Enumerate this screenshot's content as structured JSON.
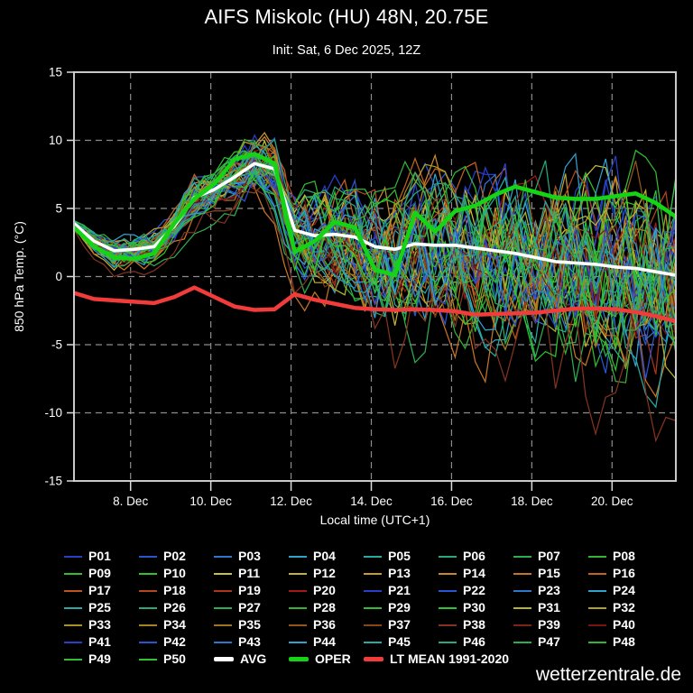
{
  "page": {
    "background": "#000000",
    "watermark": "wetterzentrale.de"
  },
  "chart_data": {
    "type": "line",
    "title": "AIFS Miskolc (HU) 48N, 20.75E",
    "subtitle": "Init: Sat, 6 Dec 2025, 12Z",
    "xlabel": "Local time (UTC+1)",
    "ylabel": "850 hPa Temp. (°C)",
    "ylim": [
      -15,
      15
    ],
    "yticks": [
      15,
      10,
      5,
      0,
      -5,
      -10,
      -15
    ],
    "grid": true,
    "grid_color": "#8c8c8c",
    "frame_color": "#c9c9c9",
    "x_days_total": 15,
    "time_step_days": 0.5,
    "xticks": [
      {
        "label": "8. Dec",
        "day": 1.41
      },
      {
        "label": "10. Dec",
        "day": 3.41
      },
      {
        "label": "12. Dec",
        "day": 5.41
      },
      {
        "label": "14. Dec",
        "day": 7.41
      },
      {
        "label": "16. Dec",
        "day": 9.41
      },
      {
        "label": "18. Dec",
        "day": 11.41
      },
      {
        "label": "20. Dec",
        "day": 13.41
      }
    ],
    "legend_position": "bottom",
    "series": [
      {
        "name": "LT MEAN 1991-2020",
        "color": "#f23c3c",
        "width": 4.5,
        "values": [
          -1.2,
          -1.65,
          -1.75,
          -1.85,
          -1.95,
          -1.5,
          -0.8,
          -1.5,
          -2.2,
          -2.45,
          -2.4,
          -1.3,
          -1.7,
          -2.0,
          -2.3,
          -2.4,
          -2.45,
          -2.4,
          -2.45,
          -2.55,
          -2.8,
          -2.75,
          -2.7,
          -2.65,
          -2.5,
          -2.35,
          -2.35,
          -2.4,
          -2.6,
          -2.9,
          -3.3
        ]
      },
      {
        "name": "AVG",
        "color": "#ffffff",
        "width": 3.6,
        "values": [
          3.9,
          2.6,
          1.9,
          2.0,
          2.2,
          3.7,
          5.8,
          6.4,
          7.3,
          8.3,
          7.9,
          3.4,
          3.0,
          3.1,
          2.9,
          2.2,
          2.0,
          2.4,
          2.3,
          2.3,
          2.1,
          1.9,
          1.7,
          1.4,
          1.1,
          1.0,
          0.9,
          0.7,
          0.6,
          0.35,
          0.1
        ]
      },
      {
        "name": "OPER",
        "color": "#15d415",
        "width": 4.6,
        "values": [
          3.6,
          2.2,
          1.4,
          1.3,
          1.7,
          3.9,
          5.7,
          6.8,
          8.6,
          9.0,
          8.3,
          1.8,
          2.6,
          4.0,
          3.6,
          0.5,
          0.1,
          4.7,
          3.3,
          4.8,
          5.2,
          6.0,
          6.6,
          6.2,
          5.8,
          5.7,
          5.7,
          5.9,
          6.1,
          5.4,
          4.4
        ]
      }
    ],
    "ensemble": {
      "count": 50,
      "names": [
        "P01",
        "P02",
        "P03",
        "P04",
        "P05",
        "P06",
        "P07",
        "P08",
        "P09",
        "P10",
        "P11",
        "P12",
        "P13",
        "P14",
        "P15",
        "P16",
        "P17",
        "P18",
        "P19",
        "P20",
        "P21",
        "P22",
        "P23",
        "P24",
        "P25",
        "P26",
        "P27",
        "P28",
        "P29",
        "P30",
        "P31",
        "P32",
        "P33",
        "P34",
        "P35",
        "P36",
        "P37",
        "P38",
        "P39",
        "P40",
        "P41",
        "P42",
        "P43",
        "P44",
        "P45",
        "P46",
        "P47",
        "P48",
        "P49",
        "P50"
      ],
      "colors": [
        "#2840c8",
        "#2a55d2",
        "#2e78cc",
        "#30a0cc",
        "#28aaa2",
        "#2aa878",
        "#2cae50",
        "#36b236",
        "#32bc32",
        "#2cc62c",
        "#c8c434",
        "#c8b030",
        "#c89c2c",
        "#c8882a",
        "#c87426",
        "#c26222",
        "#ba5420",
        "#b4461e",
        "#ae341c",
        "#a21818",
        "#2840c8",
        "#2a55d2",
        "#2e78cc",
        "#30a0cc",
        "#28aaa2",
        "#2aa878",
        "#2cae50",
        "#36b236",
        "#32bc32",
        "#2cc62c",
        "#b4b42e",
        "#aca228",
        "#a89226",
        "#a68222",
        "#a47220",
        "#96561a",
        "#8a4616",
        "#823420",
        "#7c241a",
        "#761414",
        "#2840c8",
        "#2a55d2",
        "#2e78cc",
        "#30a0cc",
        "#28aaa2",
        "#2aa878",
        "#2cae50",
        "#36b236",
        "#32bc32",
        "#2cc62c"
      ],
      "centered_on": "AVG",
      "envelope_halfwidth": [
        0.45,
        0.7,
        1.0,
        1.1,
        1.1,
        1.2,
        1.4,
        1.4,
        1.7,
        2.1,
        2.3,
        2.8,
        3.2,
        3.6,
        4.0,
        4.5,
        5.0,
        5.1,
        5.3,
        5.4,
        5.5,
        5.6,
        5.8,
        6.0,
        6.2,
        6.4,
        6.6,
        6.8,
        7.0,
        7.2,
        7.4
      ],
      "cold_outlier_members": [
        "P15",
        "P27",
        "P38"
      ]
    }
  },
  "legend": {
    "special": [
      {
        "label": "AVG",
        "color": "#ffffff"
      },
      {
        "label": "OPER",
        "color": "#15d415"
      },
      {
        "label": "LT MEAN 1991-2020",
        "color": "#f23c3c"
      }
    ]
  }
}
